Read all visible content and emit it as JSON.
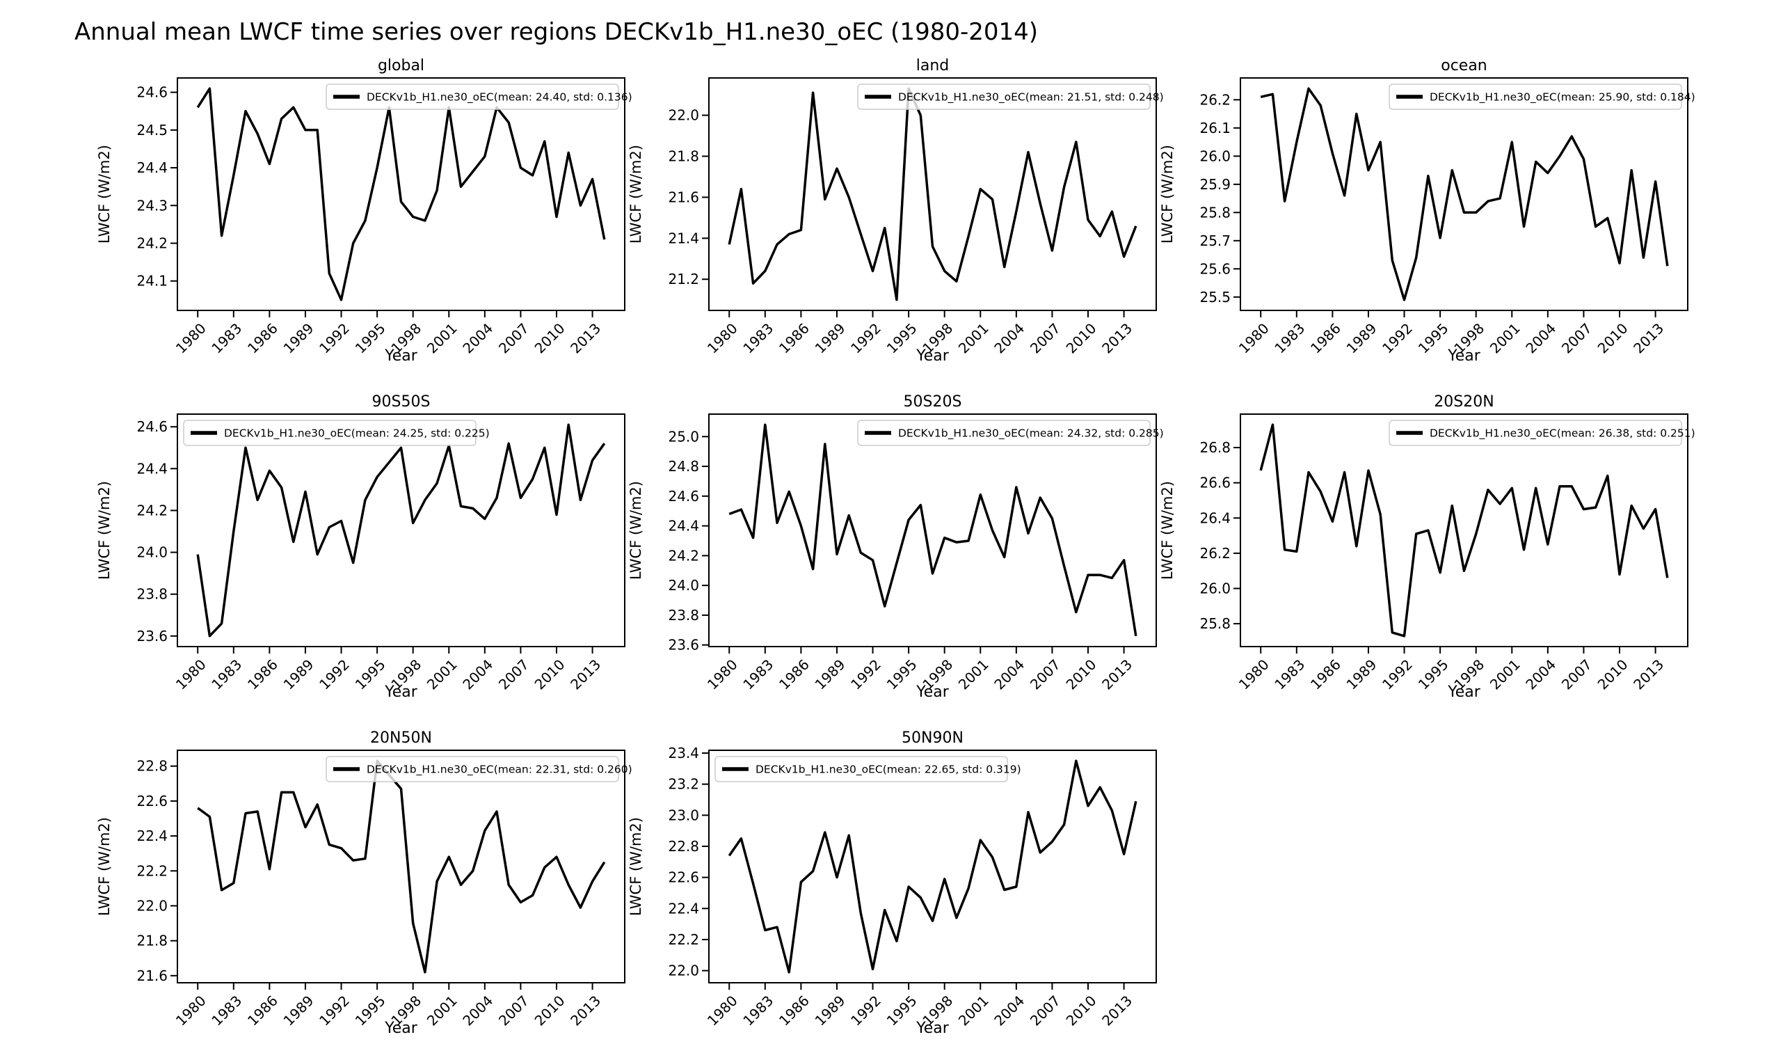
{
  "title": "Annual mean LWCF time series over regions DECKv1b_H1.ne30_oEC (1980-2014)",
  "chart_data": {
    "type": "line",
    "suptitle": "Annual mean LWCF time series over regions DECKv1b_H1.ne30_oEC (1980-2014)",
    "xlabel": "Year",
    "ylabel": "LWCF (W/m2)",
    "line_color": "#000000",
    "legend_border_color": "#cccccc",
    "grid": "off",
    "x_years": [
      1980,
      1981,
      1982,
      1983,
      1984,
      1985,
      1986,
      1987,
      1988,
      1989,
      1990,
      1991,
      1992,
      1993,
      1994,
      1995,
      1996,
      1997,
      1998,
      1999,
      2000,
      2001,
      2002,
      2003,
      2004,
      2005,
      2006,
      2007,
      2008,
      2009,
      2010,
      2011,
      2012,
      2013,
      2014
    ],
    "xticks": [
      1980,
      1983,
      1986,
      1989,
      1992,
      1995,
      1998,
      2001,
      2004,
      2007,
      2010,
      2013
    ],
    "xlim": [
      1978.3,
      2015.7
    ],
    "panels": [
      {
        "title": "global",
        "legend": "DECKv1b_H1.ne30_oEC(mean: 24.40, std: 0.136)",
        "legend_position": "upper-right",
        "mean": 24.4,
        "std": 0.136,
        "ylim": [
          24.022,
          24.638
        ],
        "yticks": [
          24.1,
          24.2,
          24.3,
          24.4,
          24.5,
          24.6
        ],
        "values": [
          24.56,
          24.61,
          24.22,
          24.38,
          24.55,
          24.49,
          24.41,
          24.53,
          24.56,
          24.5,
          24.5,
          24.12,
          24.05,
          24.2,
          24.26,
          24.4,
          24.56,
          24.31,
          24.27,
          24.26,
          24.34,
          24.56,
          24.35,
          24.39,
          24.43,
          24.56,
          24.52,
          24.4,
          24.38,
          24.47,
          24.27,
          24.44,
          24.3,
          24.37,
          24.21
        ]
      },
      {
        "title": "land",
        "legend": "DECKv1b_H1.ne30_oEC(mean: 21.51, std: 0.248)",
        "legend_position": "upper-right",
        "mean": 21.51,
        "std": 0.248,
        "ylim": [
          21.048,
          22.182
        ],
        "yticks": [
          21.2,
          21.4,
          21.6,
          21.8,
          22.0
        ],
        "values": [
          21.37,
          21.64,
          21.18,
          21.24,
          21.37,
          21.42,
          21.44,
          22.11,
          21.59,
          21.74,
          21.6,
          21.42,
          21.24,
          21.45,
          21.1,
          22.13,
          22.0,
          21.36,
          21.24,
          21.19,
          21.41,
          21.64,
          21.59,
          21.26,
          21.53,
          21.82,
          21.57,
          21.34,
          21.65,
          21.87,
          21.49,
          21.41,
          21.53,
          21.31,
          21.46
        ]
      },
      {
        "title": "ocean",
        "legend": "DECKv1b_H1.ne30_oEC(mean: 25.90, std: 0.184)",
        "legend_position": "upper-right",
        "mean": 25.9,
        "std": 0.184,
        "ylim": [
          25.4525,
          26.2775
        ],
        "yticks": [
          25.5,
          25.6,
          25.7,
          25.8,
          25.9,
          26.0,
          26.1,
          26.2
        ],
        "values": [
          26.21,
          26.22,
          25.84,
          26.05,
          26.24,
          26.18,
          26.01,
          25.86,
          26.15,
          25.95,
          26.05,
          25.63,
          25.49,
          25.64,
          25.93,
          25.71,
          25.95,
          25.8,
          25.8,
          25.84,
          25.85,
          26.05,
          25.75,
          25.98,
          25.94,
          26.0,
          26.07,
          25.99,
          25.75,
          25.78,
          25.62,
          25.95,
          25.64,
          25.91,
          25.61
        ]
      },
      {
        "title": "90S50S",
        "legend": "DECKv1b_H1.ne30_oEC(mean: 24.25, std: 0.225)",
        "legend_position": "upper-left",
        "mean": 24.25,
        "std": 0.225,
        "ylim": [
          23.5495,
          24.6605
        ],
        "yticks": [
          23.6,
          23.8,
          24.0,
          24.2,
          24.4,
          24.6
        ],
        "values": [
          23.99,
          23.6,
          23.66,
          24.1,
          24.5,
          24.25,
          24.39,
          24.31,
          24.05,
          24.29,
          23.99,
          24.12,
          24.15,
          23.95,
          24.25,
          24.36,
          24.43,
          24.5,
          24.14,
          24.25,
          24.33,
          24.51,
          24.22,
          24.21,
          24.16,
          24.26,
          24.52,
          24.26,
          24.35,
          24.5,
          24.18,
          24.61,
          24.25,
          24.44,
          24.52
        ]
      },
      {
        "title": "50S20S",
        "legend": "DECKv1b_H1.ne30_oEC(mean: 24.32, std: 0.285)",
        "legend_position": "upper-right",
        "mean": 24.32,
        "std": 0.285,
        "ylim": [
          23.589,
          25.151
        ],
        "yticks": [
          23.6,
          23.8,
          24.0,
          24.2,
          24.4,
          24.6,
          24.8,
          25.0
        ],
        "values": [
          24.48,
          24.51,
          24.32,
          25.08,
          24.42,
          24.63,
          24.4,
          24.11,
          24.95,
          24.21,
          24.47,
          24.22,
          24.17,
          23.86,
          24.15,
          24.44,
          24.54,
          24.08,
          24.32,
          24.29,
          24.3,
          24.61,
          24.37,
          24.19,
          24.66,
          24.35,
          24.59,
          24.45,
          24.13,
          23.82,
          24.07,
          24.07,
          24.05,
          24.17,
          23.66
        ]
      },
      {
        "title": "20S20N",
        "legend": "DECKv1b_H1.ne30_oEC(mean: 26.38, std: 0.251)",
        "legend_position": "upper-right",
        "mean": 26.38,
        "std": 0.251,
        "ylim": [
          25.67,
          26.99
        ],
        "yticks": [
          25.8,
          26.0,
          26.2,
          26.4,
          26.6,
          26.8
        ],
        "values": [
          26.67,
          26.93,
          26.22,
          26.21,
          26.66,
          26.55,
          26.38,
          26.66,
          26.24,
          26.67,
          26.42,
          25.75,
          25.73,
          26.31,
          26.33,
          26.09,
          26.47,
          26.1,
          26.31,
          26.56,
          26.48,
          26.57,
          26.22,
          26.57,
          26.25,
          26.58,
          26.58,
          26.45,
          26.46,
          26.64,
          26.08,
          26.47,
          26.34,
          26.45,
          26.06
        ]
      },
      {
        "title": "20N50N",
        "legend": "DECKv1b_H1.ne30_oEC(mean: 22.31, std: 0.260)",
        "legend_position": "upper-right",
        "mean": 22.31,
        "std": 0.26,
        "ylim": [
          21.5595,
          22.8905
        ],
        "yticks": [
          21.6,
          21.8,
          22.0,
          22.2,
          22.4,
          22.6,
          22.8
        ],
        "values": [
          22.56,
          22.51,
          22.09,
          22.13,
          22.53,
          22.54,
          22.21,
          22.65,
          22.65,
          22.45,
          22.58,
          22.35,
          22.33,
          22.26,
          22.27,
          22.83,
          22.75,
          22.67,
          21.9,
          21.62,
          22.14,
          22.28,
          22.12,
          22.2,
          22.43,
          22.54,
          22.12,
          22.02,
          22.06,
          22.22,
          22.28,
          22.12,
          21.99,
          22.14,
          22.25
        ]
      },
      {
        "title": "50N90N",
        "legend": "DECKv1b_H1.ne30_oEC(mean: 22.65, std: 0.319)",
        "legend_position": "upper-left",
        "mean": 22.65,
        "std": 0.319,
        "ylim": [
          21.922,
          23.418
        ],
        "yticks": [
          22.0,
          22.2,
          22.4,
          22.6,
          22.8,
          23.0,
          23.2,
          23.4
        ],
        "values": [
          22.74,
          22.85,
          22.56,
          22.26,
          22.28,
          21.99,
          22.57,
          22.64,
          22.89,
          22.6,
          22.87,
          22.37,
          22.01,
          22.39,
          22.19,
          22.54,
          22.47,
          22.32,
          22.59,
          22.34,
          22.53,
          22.84,
          22.73,
          22.52,
          22.54,
          23.02,
          22.76,
          22.83,
          22.94,
          23.35,
          23.06,
          23.18,
          23.03,
          22.75,
          23.09
        ]
      }
    ]
  }
}
